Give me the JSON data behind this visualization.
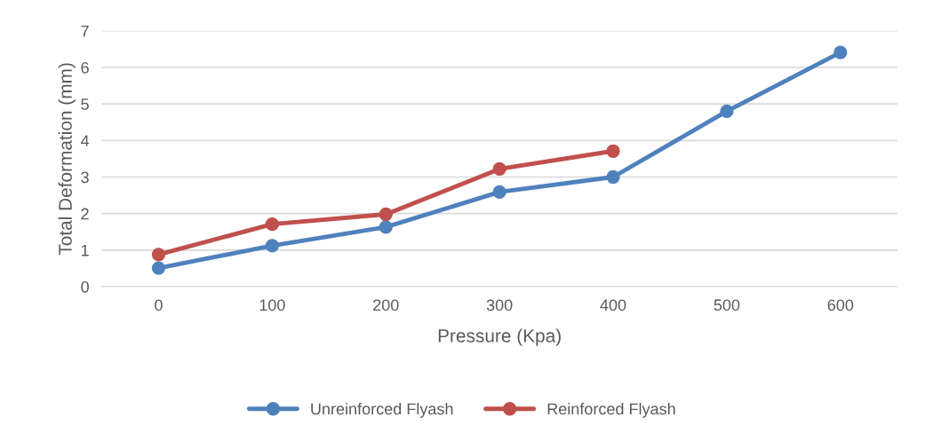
{
  "chart_data": {
    "type": "line",
    "xlabel": "Pressure (Kpa)",
    "ylabel": "Total Deformation (mm)",
    "categories": [
      "0",
      "100",
      "200",
      "300",
      "400",
      "500",
      "600"
    ],
    "series": [
      {
        "name": "Unreinforced Flyash",
        "color": "#4f81bd",
        "values": [
          0.51,
          1.12,
          1.63,
          2.59,
          3.0,
          4.8,
          6.41
        ]
      },
      {
        "name": "Reinforced Flyash",
        "color": "#c0504d",
        "values": [
          0.88,
          1.71,
          1.98,
          3.22,
          3.71,
          null,
          null
        ]
      }
    ],
    "ylim": [
      0,
      7
    ],
    "yticks": [
      0,
      1,
      2,
      3,
      4,
      5,
      6,
      7
    ],
    "grid": "y",
    "legend": "bottom",
    "marker": "circle",
    "line_style": "solid"
  }
}
